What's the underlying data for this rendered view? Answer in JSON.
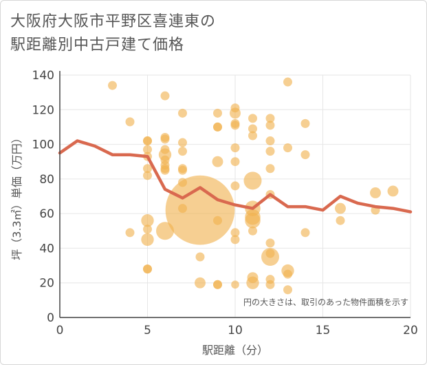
{
  "chart_data": {
    "type": "scatter",
    "title_line1": "大阪府大阪市平野区喜連東の",
    "title_line2": "駅距離別中古戸建て価格",
    "xlabel": "駅距離（分）",
    "ylabel": "坪（3.3㎡）単価（万円）",
    "note": "円の大きさは、取引のあった物件面積を示す",
    "xlim": [
      0,
      20
    ],
    "ylim": [
      0,
      140
    ],
    "xticks": [
      "0",
      "5",
      "10",
      "15",
      "20"
    ],
    "yticks": [
      "0",
      "20",
      "40",
      "60",
      "80",
      "100",
      "120",
      "140"
    ],
    "colors": {
      "bubble": "#f0b24f",
      "line": "#d9694f",
      "grid": "#e6e6e6",
      "axis": "#444444"
    },
    "points": [
      {
        "x": 3,
        "y": 134,
        "s": 1
      },
      {
        "x": 4,
        "y": 113,
        "s": 1
      },
      {
        "x": 4,
        "y": 49,
        "s": 1
      },
      {
        "x": 5,
        "y": 102,
        "s": 1
      },
      {
        "x": 5,
        "y": 102,
        "s": 1
      },
      {
        "x": 5,
        "y": 97,
        "s": 1
      },
      {
        "x": 5,
        "y": 93,
        "s": 1
      },
      {
        "x": 5,
        "y": 86,
        "s": 1
      },
      {
        "x": 5,
        "y": 82,
        "s": 1
      },
      {
        "x": 5,
        "y": 56,
        "s": 2
      },
      {
        "x": 5,
        "y": 51,
        "s": 1
      },
      {
        "x": 5,
        "y": 45,
        "s": 2
      },
      {
        "x": 5,
        "y": 28,
        "s": 1
      },
      {
        "x": 5,
        "y": 28,
        "s": 1
      },
      {
        "x": 6,
        "y": 128,
        "s": 1
      },
      {
        "x": 6,
        "y": 104,
        "s": 1
      },
      {
        "x": 6,
        "y": 103,
        "s": 1
      },
      {
        "x": 6,
        "y": 97,
        "s": 1
      },
      {
        "x": 6,
        "y": 94,
        "s": 2
      },
      {
        "x": 6,
        "y": 91,
        "s": 1
      },
      {
        "x": 6,
        "y": 88,
        "s": 1
      },
      {
        "x": 6,
        "y": 86,
        "s": 1
      },
      {
        "x": 6,
        "y": 85,
        "s": 1
      },
      {
        "x": 6,
        "y": 50,
        "s": 4
      },
      {
        "x": 7,
        "y": 118,
        "s": 1
      },
      {
        "x": 7,
        "y": 101,
        "s": 1
      },
      {
        "x": 7,
        "y": 96,
        "s": 1
      },
      {
        "x": 7,
        "y": 86,
        "s": 1
      },
      {
        "x": 7,
        "y": 85,
        "s": 1
      },
      {
        "x": 7,
        "y": 78,
        "s": 1
      },
      {
        "x": 7,
        "y": 63,
        "s": 1
      },
      {
        "x": 8,
        "y": 62,
        "s": 60
      },
      {
        "x": 8,
        "y": 35,
        "s": 1
      },
      {
        "x": 8,
        "y": 20,
        "s": 1.5
      },
      {
        "x": 9,
        "y": 118,
        "s": 1
      },
      {
        "x": 9,
        "y": 110,
        "s": 1
      },
      {
        "x": 9,
        "y": 110,
        "s": 1
      },
      {
        "x": 9,
        "y": 90,
        "s": 1.5
      },
      {
        "x": 9,
        "y": 56,
        "s": 1
      },
      {
        "x": 9,
        "y": 19,
        "s": 1
      },
      {
        "x": 9,
        "y": 19,
        "s": 1
      },
      {
        "x": 10,
        "y": 121,
        "s": 1
      },
      {
        "x": 10,
        "y": 118,
        "s": 1.5
      },
      {
        "x": 10,
        "y": 112,
        "s": 1
      },
      {
        "x": 10,
        "y": 111,
        "s": 1
      },
      {
        "x": 10,
        "y": 98,
        "s": 1
      },
      {
        "x": 10,
        "y": 90,
        "s": 1
      },
      {
        "x": 10,
        "y": 76,
        "s": 1
      },
      {
        "x": 10,
        "y": 49,
        "s": 1
      },
      {
        "x": 10,
        "y": 45,
        "s": 1
      },
      {
        "x": 10,
        "y": 19,
        "s": 0.8
      },
      {
        "x": 11,
        "y": 115,
        "s": 1
      },
      {
        "x": 11,
        "y": 109,
        "s": 1
      },
      {
        "x": 11,
        "y": 105,
        "s": 1
      },
      {
        "x": 11,
        "y": 79,
        "s": 4
      },
      {
        "x": 11,
        "y": 63,
        "s": 3
      },
      {
        "x": 11,
        "y": 58,
        "s": 3
      },
      {
        "x": 11,
        "y": 56,
        "s": 3
      },
      {
        "x": 11,
        "y": 50,
        "s": 1
      },
      {
        "x": 11,
        "y": 23,
        "s": 1.5
      },
      {
        "x": 11,
        "y": 20,
        "s": 2
      },
      {
        "x": 12,
        "y": 115,
        "s": 1
      },
      {
        "x": 12,
        "y": 111,
        "s": 1
      },
      {
        "x": 12,
        "y": 102,
        "s": 1
      },
      {
        "x": 12,
        "y": 96,
        "s": 1
      },
      {
        "x": 12,
        "y": 86,
        "s": 1
      },
      {
        "x": 12,
        "y": 71,
        "s": 1
      },
      {
        "x": 12,
        "y": 43,
        "s": 1
      },
      {
        "x": 12,
        "y": 37,
        "s": 1
      },
      {
        "x": 12,
        "y": 35,
        "s": 4
      },
      {
        "x": 12,
        "y": 22,
        "s": 1
      },
      {
        "x": 12,
        "y": 19,
        "s": 1
      },
      {
        "x": 13,
        "y": 136,
        "s": 1
      },
      {
        "x": 13,
        "y": 98,
        "s": 1
      },
      {
        "x": 13,
        "y": 27,
        "s": 2
      },
      {
        "x": 13,
        "y": 25,
        "s": 1
      },
      {
        "x": 13,
        "y": 16,
        "s": 1
      },
      {
        "x": 14,
        "y": 112,
        "s": 1
      },
      {
        "x": 14,
        "y": 94,
        "s": 1
      },
      {
        "x": 14,
        "y": 49,
        "s": 1
      },
      {
        "x": 16,
        "y": 63,
        "s": 1.5
      },
      {
        "x": 16,
        "y": 56,
        "s": 1
      },
      {
        "x": 18,
        "y": 72,
        "s": 1.5
      },
      {
        "x": 18,
        "y": 62,
        "s": 1
      },
      {
        "x": 19,
        "y": 73,
        "s": 1.5
      }
    ],
    "trend": [
      {
        "x": 0,
        "y": 95
      },
      {
        "x": 1,
        "y": 102
      },
      {
        "x": 2,
        "y": 99
      },
      {
        "x": 3,
        "y": 94
      },
      {
        "x": 4,
        "y": 94
      },
      {
        "x": 5,
        "y": 93
      },
      {
        "x": 6,
        "y": 74
      },
      {
        "x": 7,
        "y": 69
      },
      {
        "x": 8,
        "y": 75
      },
      {
        "x": 9,
        "y": 68
      },
      {
        "x": 10,
        "y": 65
      },
      {
        "x": 11,
        "y": 63
      },
      {
        "x": 12,
        "y": 71
      },
      {
        "x": 13,
        "y": 64
      },
      {
        "x": 14,
        "y": 64
      },
      {
        "x": 15,
        "y": 62
      },
      {
        "x": 16,
        "y": 70
      },
      {
        "x": 17,
        "y": 66
      },
      {
        "x": 18,
        "y": 64
      },
      {
        "x": 19,
        "y": 63
      },
      {
        "x": 20,
        "y": 61
      }
    ]
  }
}
